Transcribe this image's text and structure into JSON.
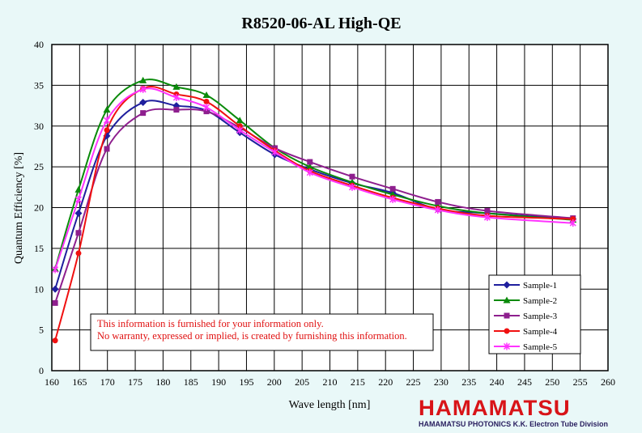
{
  "chart_data": {
    "type": "line",
    "title": "R8520-06-AL High-QE",
    "xlabel": "Wave length [nm]",
    "ylabel": "Quantum Efficiency [%]",
    "xlim": [
      160,
      260
    ],
    "ylim": [
      0,
      40
    ],
    "xticks": [
      160,
      165,
      170,
      175,
      180,
      185,
      190,
      195,
      200,
      205,
      210,
      215,
      220,
      225,
      230,
      235,
      240,
      245,
      250,
      255,
      260
    ],
    "yticks": [
      0,
      5,
      10,
      15,
      20,
      25,
      30,
      35,
      40
    ],
    "grid": true,
    "legend_position": "lower-right",
    "note": [
      "This information is furnished for your information only.",
      "No warranty, expressed or implied, is created by furnishing this information."
    ],
    "series": [
      {
        "name": "Sample-1",
        "color": "#1f1f9e",
        "marker": "diamond",
        "x": [
          160.6,
          164.8,
          169.9,
          176.4,
          182.4,
          187.8,
          193.8,
          200.1,
          206.4,
          214.0,
          221.3,
          229.4,
          238.3,
          253.7
        ],
        "y": [
          10.0,
          19.3,
          28.8,
          32.9,
          32.5,
          31.9,
          29.2,
          26.5,
          24.7,
          23.0,
          21.8,
          19.8,
          19.3,
          18.6
        ]
      },
      {
        "name": "Sample-2",
        "color": "#0a8a0a",
        "marker": "triangle",
        "x": [
          160.6,
          164.8,
          169.9,
          176.4,
          182.4,
          187.8,
          193.8,
          200.1,
          206.4,
          214.0,
          221.3,
          229.4,
          238.3,
          253.7
        ],
        "y": [
          12.5,
          22.2,
          32.0,
          35.6,
          34.8,
          33.8,
          30.7,
          27.3,
          25.0,
          23.1,
          21.6,
          20.2,
          19.3,
          18.5
        ]
      },
      {
        "name": "Sample-3",
        "color": "#8e1f8e",
        "marker": "square",
        "x": [
          160.6,
          164.8,
          169.9,
          176.4,
          182.4,
          187.8,
          193.8,
          200.1,
          206.4,
          214.0,
          221.3,
          229.4,
          238.3,
          253.7
        ],
        "y": [
          8.3,
          16.9,
          27.2,
          31.6,
          32.0,
          31.8,
          29.8,
          27.3,
          25.6,
          23.8,
          22.3,
          20.7,
          19.6,
          18.7
        ]
      },
      {
        "name": "Sample-4",
        "color": "#f01010",
        "marker": "circle",
        "x": [
          160.6,
          164.8,
          169.9,
          176.4,
          182.4,
          187.8,
          193.8,
          200.1,
          206.4,
          214.0,
          221.3,
          229.4,
          238.3,
          253.7
        ],
        "y": [
          3.7,
          14.4,
          29.5,
          34.6,
          33.9,
          33.0,
          30.0,
          27.0,
          24.5,
          22.7,
          21.2,
          19.9,
          19.0,
          18.6
        ]
      },
      {
        "name": "Sample-5",
        "color": "#ff33ff",
        "marker": "star",
        "x": [
          160.6,
          164.8,
          169.9,
          176.4,
          182.4,
          187.8,
          193.8,
          200.1,
          206.4,
          214.0,
          221.3,
          229.4,
          238.3,
          253.7
        ],
        "y": [
          12.4,
          21.0,
          30.7,
          34.5,
          33.5,
          32.3,
          29.5,
          26.8,
          24.3,
          22.5,
          21.0,
          19.7,
          18.8,
          18.1
        ]
      }
    ]
  },
  "branding": {
    "logo_word": "HAMAMATSU",
    "logo_subtitle": "HAMAMATSU PHOTONICS K.K. Electron Tube Division"
  }
}
